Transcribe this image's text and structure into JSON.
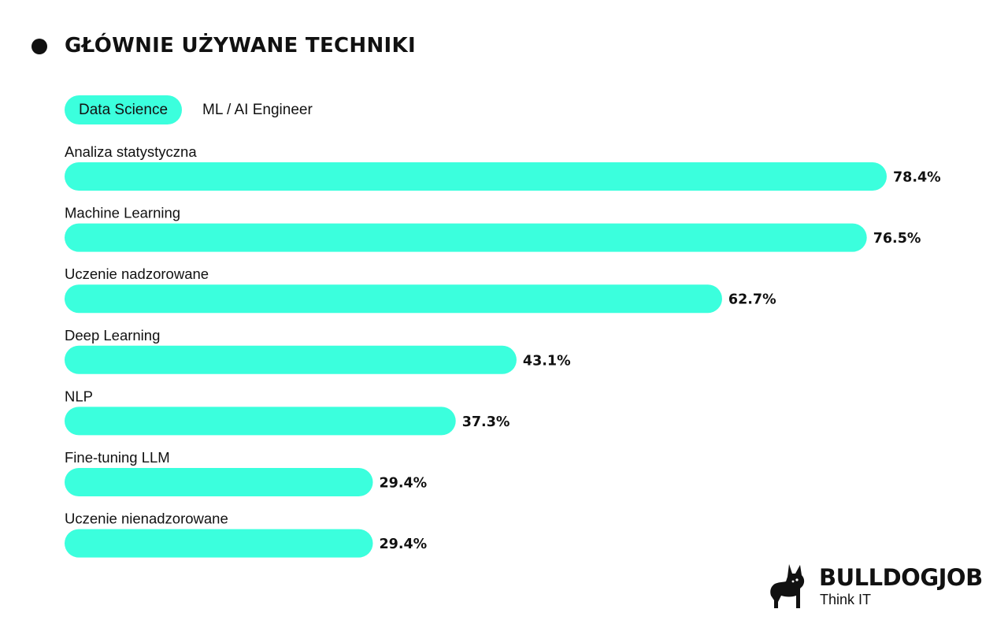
{
  "title": "GŁÓWNIE UŻYWANE TECHNIKI",
  "tabs": [
    {
      "label": "Data Science",
      "active": true
    },
    {
      "label": "ML / AI Engineer",
      "active": false
    }
  ],
  "colors": {
    "accent": "#3BFFDD",
    "text": "#111111",
    "background": "#FFFFFF"
  },
  "chart_data": {
    "type": "bar",
    "orientation": "horizontal",
    "categories": [
      "Analiza statystyczna",
      "Machine Learning",
      "Uczenie nadzorowane",
      "Deep Learning",
      "NLP",
      "Fine-tuning LLM",
      "Uczenie nienadzorowane"
    ],
    "values": [
      78.4,
      76.5,
      62.7,
      43.1,
      37.3,
      29.4,
      29.4
    ],
    "value_labels": [
      "78.4%",
      "76.5%",
      "62.7%",
      "43.1%",
      "37.3%",
      "29.4%",
      "29.4%"
    ],
    "unit": "%",
    "grid": false,
    "legend": "none"
  },
  "logo": {
    "name": "BULLDOGJOB",
    "tagline": "Think IT",
    "icon": "bulldog-icon"
  }
}
